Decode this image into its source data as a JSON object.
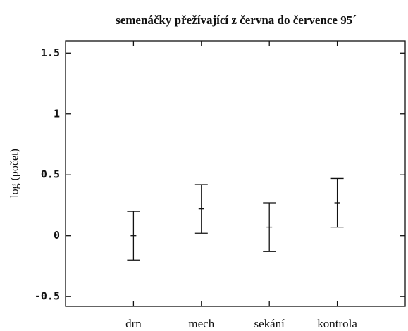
{
  "chart_data": {
    "type": "errorbar",
    "title": "semenáčky přežívající z června do července 95´",
    "y_label": "log (počet)",
    "categories": [
      "drn",
      "mech",
      "sekání",
      "kontrola"
    ],
    "values": [
      0,
      0.22,
      0.07,
      0.27
    ],
    "errors": [
      0.2,
      0.2,
      0.2,
      0.2
    ],
    "color": "#111111",
    "ylim": [
      -0.58,
      1.6
    ],
    "yticks": [
      -0.5,
      0,
      0.5,
      1,
      1.5
    ]
  }
}
